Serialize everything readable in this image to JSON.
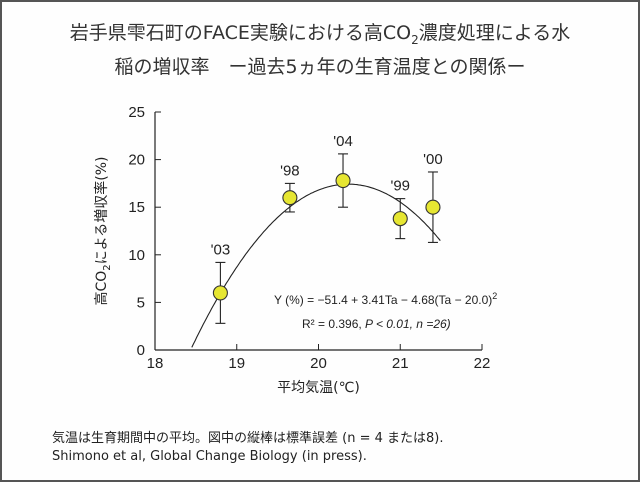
{
  "title_line1": "岩手県雫石町のFACE実験における高CO",
  "title_sub": "2",
  "title_line1_end": "濃度処理による水",
  "title_line2": "稲の増収率　ー過去5ヵ年の生育温度との関係ー",
  "chart_data": {
    "type": "scatter",
    "xlabel": "平均気温(℃)",
    "ylabel_parts": [
      "高CO",
      "2",
      "による増収率(%)"
    ],
    "xlim": [
      18,
      22
    ],
    "ylim": [
      0,
      25
    ],
    "xticks": [
      "18",
      "19",
      "20",
      "21",
      "22"
    ],
    "yticks": [
      "0",
      "5",
      "10",
      "15",
      "20",
      "25"
    ],
    "points": [
      {
        "label": "'03",
        "x": 18.8,
        "y": 6.0,
        "err": 3.2
      },
      {
        "label": "'98",
        "x": 19.65,
        "y": 16.0,
        "err": 1.5
      },
      {
        "label": "'04",
        "x": 20.3,
        "y": 17.8,
        "err": 2.8
      },
      {
        "label": "'99",
        "x": 21.0,
        "y": 13.8,
        "err": 2.1
      },
      {
        "label": "'00",
        "x": 21.4,
        "y": 15.0,
        "err": 3.7
      }
    ],
    "fit": {
      "a": -51.4,
      "b": 3.41,
      "c": -4.68,
      "ref": 20.0
    },
    "eq_text": "Y (%) = −51.4 + 3.41Ta − 4.68(Ta − 20.0)",
    "eq_sup": "2",
    "r2_text": "R² = 0.396, ",
    "p_text": "P < 0.01, n =26)",
    "point_color": "#e6e632"
  },
  "footer": {
    "line1": "気温は生育期間中の平均。図中の縦棒は標準誤差 (n = 4 または8).",
    "line2": "Shimono et al, Global Change Biology (in press)."
  }
}
